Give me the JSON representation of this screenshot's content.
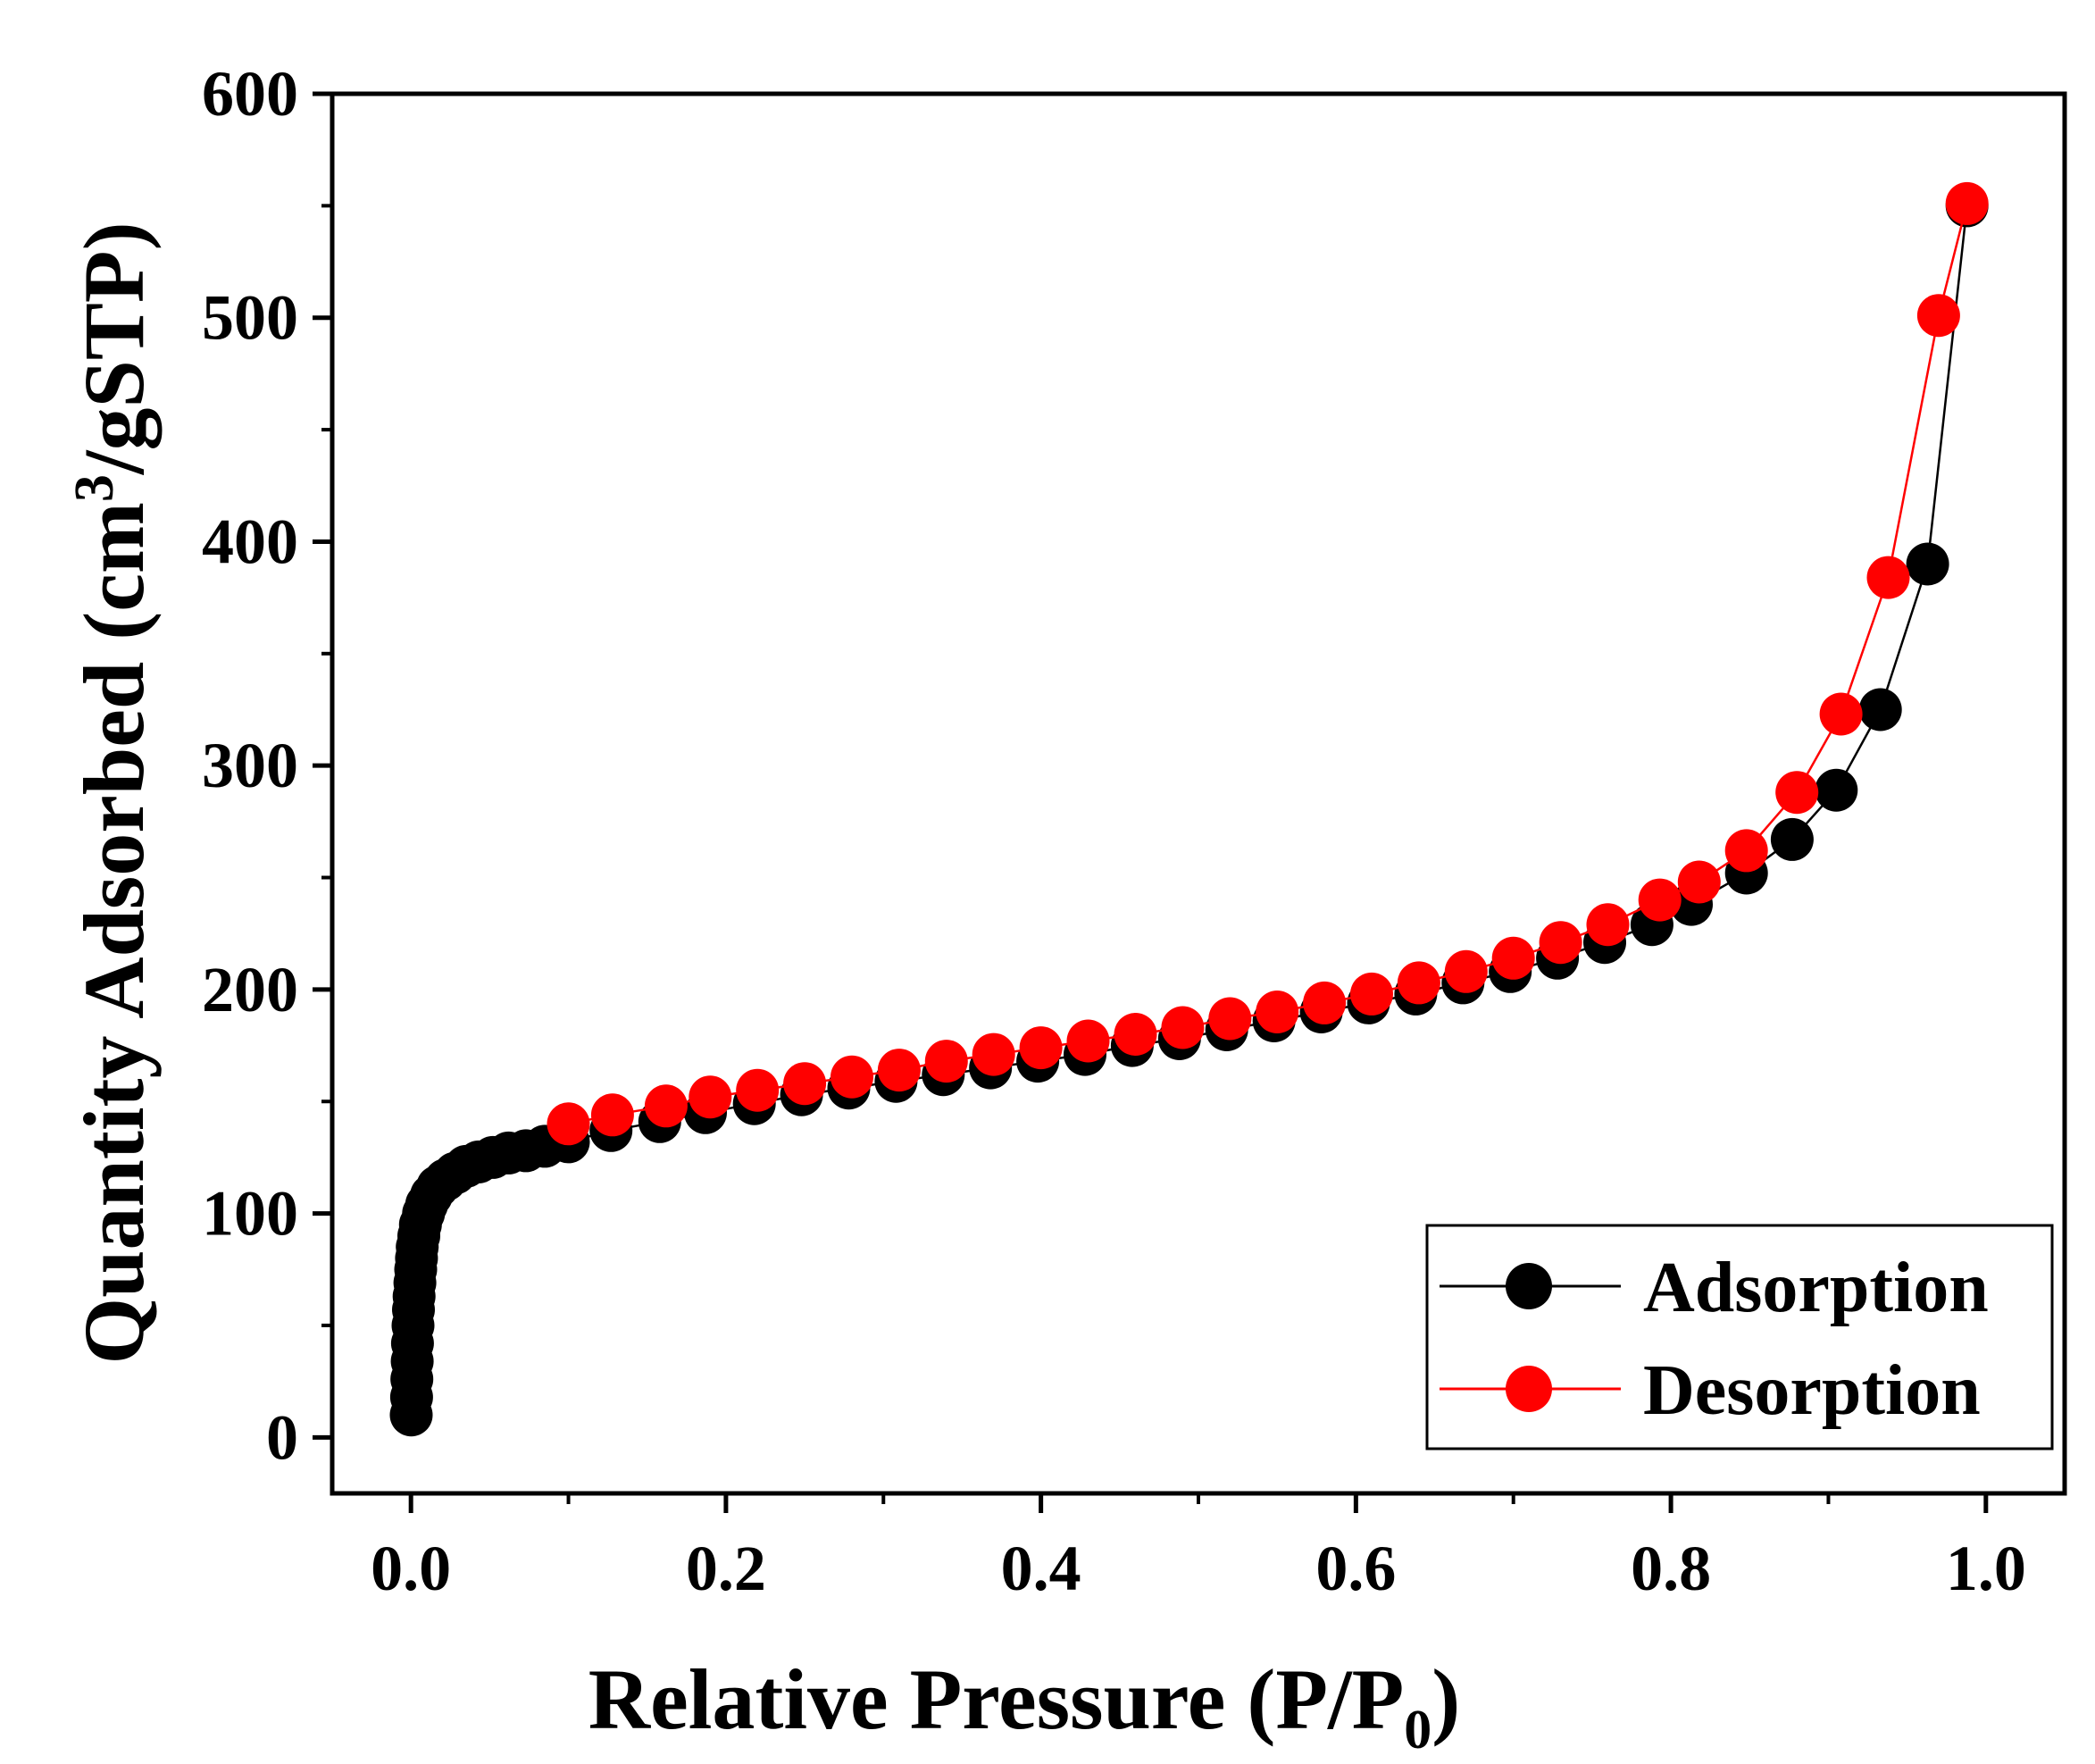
{
  "chart_data": {
    "type": "scatter",
    "xlabel": "Relative Pressure (P/P",
    "xlabel_sub": "0",
    "xlabel_end": ")",
    "ylabel": "Quantity Adsorbed (cm",
    "ylabel_sup": "3",
    "ylabel_end": "/gSTP)",
    "xlim": [
      -0.05,
      1.05
    ],
    "ylim": [
      -25,
      600
    ],
    "xticks": [
      0.0,
      0.2,
      0.4,
      0.6,
      0.8,
      1.0
    ],
    "xtick_labels": [
      "0.0",
      "0.2",
      "0.4",
      "0.6",
      "0.8",
      "1.0"
    ],
    "yticks": [
      0,
      100,
      200,
      300,
      400,
      500,
      600
    ],
    "ytick_labels": [
      "0",
      "100",
      "200",
      "300",
      "400",
      "500",
      "600"
    ],
    "grid": false,
    "legend_position": "bottom-right",
    "series": [
      {
        "name": "Adsorption",
        "color": "#000000",
        "x": [
          0.0002,
          0.0004,
          0.0006,
          0.0008,
          0.001,
          0.0013,
          0.0016,
          0.002,
          0.0025,
          0.003,
          0.0035,
          0.004,
          0.005,
          0.006,
          0.008,
          0.01,
          0.013,
          0.017,
          0.022,
          0.028,
          0.035,
          0.043,
          0.052,
          0.062,
          0.073,
          0.085,
          0.1,
          0.127,
          0.158,
          0.187,
          0.218,
          0.248,
          0.278,
          0.308,
          0.338,
          0.368,
          0.398,
          0.428,
          0.458,
          0.488,
          0.518,
          0.548,
          0.578,
          0.608,
          0.638,
          0.668,
          0.698,
          0.728,
          0.758,
          0.788,
          0.813,
          0.848,
          0.877,
          0.905,
          0.933,
          0.963,
          0.988
        ],
        "y": [
          10,
          18,
          26,
          34,
          42,
          50,
          57,
          63,
          69,
          75,
          80,
          85,
          90,
          95,
          100,
          104,
          108,
          112,
          115,
          118,
          121,
          123,
          125,
          127,
          128,
          130,
          132,
          137,
          141,
          145,
          149,
          153,
          156,
          159,
          162,
          165,
          168,
          171,
          175,
          178,
          182,
          186,
          190,
          194,
          198,
          203,
          208,
          214,
          221,
          229,
          238,
          252,
          267,
          289,
          325,
          390,
          550
        ]
      },
      {
        "name": "Desorption",
        "color": "#ff0000",
        "x": [
          0.988,
          0.97,
          0.938,
          0.908,
          0.88,
          0.848,
          0.818,
          0.793,
          0.76,
          0.73,
          0.7,
          0.67,
          0.64,
          0.61,
          0.58,
          0.55,
          0.52,
          0.49,
          0.46,
          0.43,
          0.4,
          0.37,
          0.34,
          0.31,
          0.28,
          0.25,
          0.22,
          0.19,
          0.162,
          0.128,
          0.1
        ],
        "y": [
          551,
          501,
          384,
          323,
          288,
          262,
          248,
          240,
          229,
          221,
          214,
          208,
          203,
          198,
          194,
          190,
          187,
          183,
          180,
          177,
          174,
          171,
          168,
          164,
          161,
          158,
          155,
          152,
          148,
          144,
          140
        ]
      }
    ]
  }
}
